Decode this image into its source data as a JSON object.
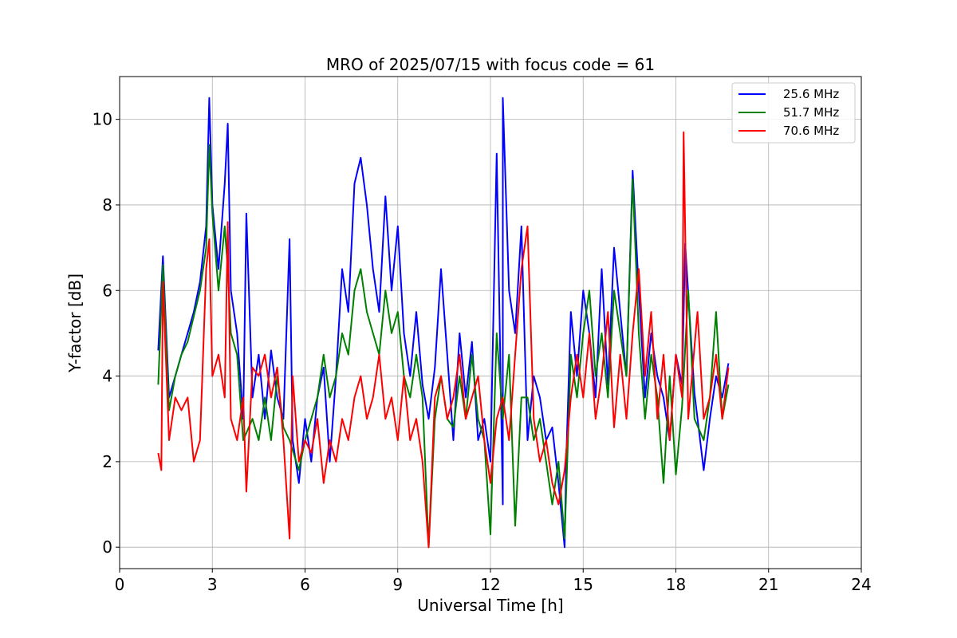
{
  "chart_data": {
    "type": "line",
    "title": "MRO of 2025/07/15 with focus code = 61",
    "xlabel": "Universal Time [h]",
    "ylabel": "Y-factor [dB]",
    "xlim": [
      0,
      24
    ],
    "ylim": [
      -0.5,
      11
    ],
    "xticks": [
      0,
      3,
      6,
      9,
      12,
      15,
      18,
      21,
      24
    ],
    "yticks": [
      0,
      2,
      4,
      6,
      8,
      10
    ],
    "grid": true,
    "legend_position": "top-right",
    "series": [
      {
        "name": "25.6 MHz",
        "color": "#0000ff",
        "x": [
          1.25,
          1.4,
          1.6,
          1.8,
          2.0,
          2.2,
          2.4,
          2.6,
          2.8,
          2.9,
          3.0,
          3.2,
          3.4,
          3.5,
          3.6,
          3.8,
          4.0,
          4.1,
          4.3,
          4.5,
          4.7,
          4.9,
          5.1,
          5.3,
          5.5,
          5.6,
          5.8,
          6.0,
          6.2,
          6.4,
          6.6,
          6.8,
          7.0,
          7.2,
          7.4,
          7.6,
          7.8,
          8.0,
          8.2,
          8.4,
          8.6,
          8.8,
          9.0,
          9.2,
          9.4,
          9.6,
          9.8,
          10.0,
          10.2,
          10.4,
          10.6,
          10.8,
          11.0,
          11.2,
          11.4,
          11.6,
          11.8,
          12.0,
          12.2,
          12.4,
          12.4,
          12.6,
          12.8,
          13.0,
          13.2,
          13.4,
          13.6,
          13.8,
          14.0,
          14.2,
          14.4,
          14.45,
          14.6,
          14.8,
          15.0,
          15.2,
          15.4,
          15.6,
          15.8,
          16.0,
          16.2,
          16.4,
          16.6,
          16.8,
          17.0,
          17.2,
          17.4,
          17.6,
          17.8,
          18.0,
          18.2,
          18.3,
          18.6,
          18.9,
          19.1,
          19.3,
          19.5,
          19.7
        ],
        "y": [
          4.6,
          6.8,
          3.5,
          4.0,
          4.5,
          5.0,
          5.5,
          6.2,
          7.5,
          10.5,
          8.0,
          6.5,
          8.5,
          9.9,
          6.0,
          5.0,
          3.0,
          7.8,
          3.5,
          4.5,
          3.0,
          4.6,
          3.5,
          3.0,
          7.2,
          2.5,
          1.5,
          3.0,
          2.0,
          3.5,
          4.2,
          2.0,
          4.0,
          6.5,
          5.5,
          8.5,
          9.1,
          8.0,
          6.5,
          5.5,
          8.2,
          6.0,
          7.5,
          5.0,
          4.0,
          5.5,
          3.8,
          3.0,
          4.2,
          6.5,
          4.5,
          2.5,
          5.0,
          3.5,
          4.8,
          2.5,
          3.0,
          2.0,
          9.2,
          1.0,
          10.5,
          6.0,
          5.0,
          7.5,
          2.5,
          4.0,
          3.5,
          2.5,
          2.8,
          1.5,
          0.0,
          2.0,
          5.5,
          4.0,
          6.0,
          5.0,
          3.5,
          6.5,
          3.8,
          7.0,
          5.5,
          4.0,
          8.8,
          6.0,
          3.5,
          5.0,
          4.0,
          3.5,
          2.5,
          4.5,
          3.8,
          7.1,
          3.6,
          1.8,
          3.0,
          4.0,
          3.5,
          4.3
        ]
      },
      {
        "name": "51.7 MHz",
        "color": "#008000",
        "x": [
          1.25,
          1.4,
          1.6,
          1.8,
          2.0,
          2.2,
          2.4,
          2.6,
          2.8,
          2.9,
          3.0,
          3.2,
          3.4,
          3.5,
          3.6,
          3.8,
          4.0,
          4.3,
          4.5,
          4.7,
          4.9,
          5.1,
          5.3,
          5.5,
          5.8,
          6.0,
          6.2,
          6.4,
          6.6,
          6.8,
          7.0,
          7.2,
          7.4,
          7.6,
          7.8,
          8.0,
          8.2,
          8.4,
          8.6,
          8.8,
          9.0,
          9.2,
          9.4,
          9.6,
          9.8,
          10.0,
          10.2,
          10.4,
          10.6,
          10.8,
          11.0,
          11.2,
          11.4,
          11.6,
          11.8,
          12.0,
          12.2,
          12.4,
          12.6,
          12.8,
          13.0,
          13.2,
          13.4,
          13.6,
          13.8,
          14.0,
          14.2,
          14.4,
          14.6,
          14.8,
          15.0,
          15.2,
          15.4,
          15.6,
          15.8,
          16.0,
          16.2,
          16.4,
          16.6,
          16.8,
          17.0,
          17.2,
          17.4,
          17.6,
          17.8,
          18.0,
          18.2,
          18.4,
          18.6,
          18.9,
          19.1,
          19.3,
          19.5,
          19.7
        ],
        "y": [
          3.8,
          6.6,
          3.2,
          4.0,
          4.5,
          4.8,
          5.4,
          6.0,
          7.0,
          9.4,
          7.8,
          6.0,
          7.5,
          6.5,
          5.0,
          4.5,
          2.5,
          3.0,
          2.5,
          3.5,
          2.5,
          4.0,
          2.8,
          2.5,
          1.8,
          2.5,
          3.0,
          3.5,
          4.5,
          3.5,
          4.0,
          5.0,
          4.5,
          6.0,
          6.5,
          5.5,
          5.0,
          4.5,
          6.0,
          5.0,
          5.5,
          4.0,
          3.5,
          4.5,
          3.5,
          0.0,
          3.0,
          4.0,
          3.0,
          2.8,
          4.0,
          3.0,
          4.5,
          3.0,
          2.5,
          0.3,
          5.0,
          3.0,
          4.5,
          0.5,
          3.5,
          3.5,
          2.5,
          3.0,
          2.0,
          1.0,
          2.0,
          0.2,
          4.5,
          3.5,
          5.0,
          6.0,
          4.0,
          5.0,
          3.5,
          6.0,
          5.0,
          4.0,
          8.6,
          5.0,
          3.0,
          4.5,
          3.5,
          1.5,
          4.0,
          1.7,
          3.3,
          6.0,
          3.0,
          2.5,
          3.5,
          5.5,
          3.0,
          3.8
        ]
      },
      {
        "name": "70.6 MHz",
        "color": "#ff0000",
        "x": [
          1.25,
          1.35,
          1.4,
          1.6,
          1.8,
          2.0,
          2.2,
          2.4,
          2.6,
          2.8,
          2.9,
          3.0,
          3.2,
          3.4,
          3.5,
          3.6,
          3.8,
          4.0,
          4.1,
          4.3,
          4.5,
          4.7,
          4.9,
          5.1,
          5.3,
          5.5,
          5.6,
          5.8,
          6.0,
          6.2,
          6.4,
          6.6,
          6.8,
          7.0,
          7.2,
          7.4,
          7.6,
          7.8,
          8.0,
          8.2,
          8.4,
          8.6,
          8.8,
          9.0,
          9.2,
          9.4,
          9.6,
          9.8,
          10.0,
          10.2,
          10.4,
          10.6,
          10.8,
          11.0,
          11.2,
          11.4,
          11.6,
          11.8,
          12.0,
          12.2,
          12.4,
          12.6,
          12.8,
          13.0,
          13.2,
          13.4,
          13.6,
          13.8,
          14.0,
          14.2,
          14.4,
          14.6,
          14.8,
          15.0,
          15.2,
          15.4,
          15.6,
          15.8,
          16.0,
          16.2,
          16.4,
          16.6,
          16.8,
          17.0,
          17.2,
          17.4,
          17.6,
          17.8,
          18.0,
          18.2,
          18.25,
          18.4,
          18.7,
          18.9,
          19.1,
          19.3,
          19.5,
          19.7
        ],
        "y": [
          2.2,
          1.8,
          6.2,
          2.5,
          3.5,
          3.2,
          3.5,
          2.0,
          2.5,
          6.5,
          7.2,
          4.0,
          4.5,
          3.5,
          7.6,
          3.0,
          2.5,
          3.5,
          1.3,
          4.2,
          4.0,
          4.5,
          3.5,
          4.2,
          2.5,
          0.2,
          4.0,
          2.0,
          2.5,
          2.2,
          3.0,
          1.5,
          2.5,
          2.0,
          3.0,
          2.5,
          3.5,
          4.0,
          3.0,
          3.5,
          4.5,
          3.0,
          3.5,
          2.5,
          4.0,
          2.5,
          3.0,
          2.0,
          0.0,
          3.5,
          4.0,
          3.0,
          3.5,
          4.5,
          3.0,
          3.5,
          4.0,
          2.5,
          1.5,
          3.0,
          3.5,
          2.5,
          4.5,
          6.5,
          7.5,
          3.0,
          2.0,
          2.5,
          1.5,
          1.0,
          1.8,
          3.5,
          4.5,
          3.5,
          5.0,
          3.0,
          4.0,
          5.5,
          2.8,
          4.5,
          3.0,
          5.0,
          6.5,
          4.0,
          5.5,
          3.0,
          4.5,
          2.5,
          4.5,
          3.5,
          9.7,
          3.0,
          5.5,
          3.0,
          3.5,
          4.5,
          3.0,
          4.2
        ]
      }
    ]
  }
}
